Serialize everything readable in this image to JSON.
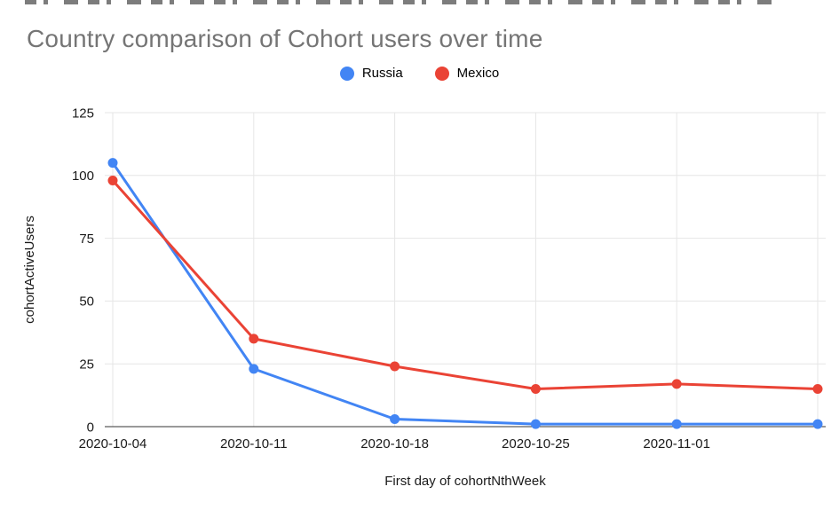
{
  "page": {
    "background": "#ffffff"
  },
  "chart_data": {
    "type": "line",
    "title": "Country comparison of Cohort users over time",
    "xlabel": "First day of cohortNthWeek",
    "ylabel": "cohortActiveUsers",
    "x_tick_labels": [
      "2020-10-04",
      "2020-10-11",
      "2020-10-18",
      "2020-10-25",
      "2020-11-01",
      ""
    ],
    "y_ticks": [
      0,
      25,
      50,
      75,
      100,
      125
    ],
    "ylim": [
      0,
      125
    ],
    "grid": true,
    "legend_position": "top-center",
    "series": [
      {
        "name": "Russia",
        "color": "#4285f4",
        "values": [
          105,
          23,
          3,
          1,
          1,
          1
        ]
      },
      {
        "name": "Mexico",
        "color": "#ea4335",
        "values": [
          98,
          35,
          24,
          15,
          17,
          15
        ]
      }
    ],
    "colors": {
      "grid": "#e6e6e6",
      "axis": "#333333",
      "tick_text": "#1a1a1a",
      "title_text": "#757575",
      "russia": "#4285f4",
      "mexico": "#ea4335"
    }
  }
}
